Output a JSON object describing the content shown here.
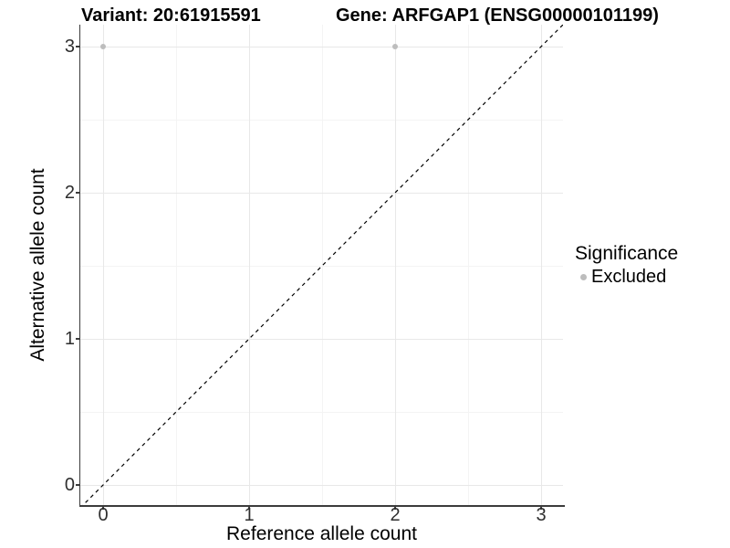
{
  "header": {
    "variant_title": "Variant: 20:61915591",
    "gene_title": "Gene: ARFGAP1 (ENSG00000101199)"
  },
  "colors": {
    "background": "#ffffff",
    "axis_line": "#3c3c3c",
    "grid_major": "#e8e8e8",
    "grid_minor": "#f4f4f4",
    "point_excluded": "#bdbdbd",
    "identity_line": "#000000",
    "tick_text": "#2e2e2e",
    "title_text": "#000000"
  },
  "chart_data": {
    "type": "scatter",
    "title_left": "Variant: 20:61915591",
    "title_right": "Gene: ARFGAP1 (ENSG00000101199)",
    "xlabel": "Reference allele count",
    "ylabel": "Alternative allele count",
    "x_ticks": [
      0,
      1,
      2,
      3
    ],
    "y_ticks": [
      0,
      1,
      2,
      3
    ],
    "xlim": [
      -0.156,
      3.15
    ],
    "ylim": [
      -0.156,
      3.15
    ],
    "grid": "major+minor",
    "series": [
      {
        "name": "Excluded",
        "color": "#bdbdbd",
        "points": [
          [
            0,
            3
          ],
          [
            2,
            3
          ]
        ]
      }
    ],
    "identity_line": {
      "slope": 1,
      "intercept": 0,
      "style": "dashed",
      "color": "#000000"
    },
    "legend": {
      "title": "Significance",
      "position": "right",
      "entries": [
        {
          "label": "Excluded",
          "color": "#bdbdbd"
        }
      ]
    }
  }
}
